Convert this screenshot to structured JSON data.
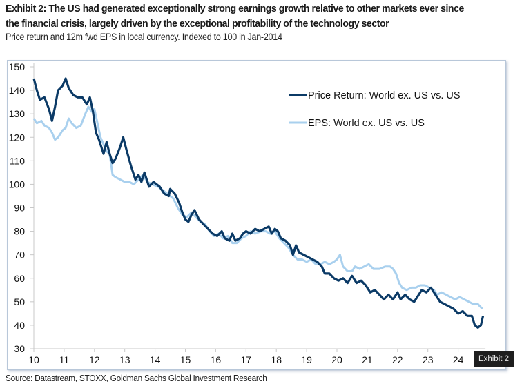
{
  "header": {
    "title_line1": "Exhibit 2: The US had generated exceptionally strong earnings growth relative to other markets ever since",
    "title_line2": "the financial crisis, largely driven by the exceptional profitability of the technology sector",
    "subtitle": "Price return and 12m fwd EPS in local currency. Indexed to 100 in Jan-2014"
  },
  "footer": {
    "source": "Source: Datastream, STOXX, Goldman Sachs Global Investment Research",
    "badge": "Exhibit 2"
  },
  "colors": {
    "price_return": "#0b3a66",
    "eps": "#a9d0ee",
    "axis": "#c8c8c8"
  },
  "chart_data": {
    "type": "line",
    "title": "Exhibit 2",
    "xlabel": "",
    "ylabel": "",
    "xlim": [
      10,
      24.9
    ],
    "ylim": [
      30,
      150
    ],
    "x_ticks": [
      10,
      11,
      12,
      13,
      14,
      15,
      16,
      17,
      18,
      19,
      20,
      21,
      22,
      23,
      24
    ],
    "x_tick_labels": [
      "10",
      "11",
      "12",
      "13",
      "14",
      "15",
      "16",
      "17",
      "18",
      "19",
      "20",
      "21",
      "22",
      "23",
      "24"
    ],
    "y_ticks": [
      30,
      40,
      50,
      60,
      70,
      80,
      90,
      100,
      110,
      120,
      130,
      140,
      150
    ],
    "y_tick_labels": [
      "30",
      "40",
      "50",
      "60",
      "70",
      "80",
      "90",
      "100",
      "110",
      "120",
      "130",
      "140",
      "150"
    ],
    "grid": false,
    "legend_position": "top-right",
    "series": [
      {
        "name": "Price Return: World ex. US vs. US",
        "points": [
          [
            10.0,
            145
          ],
          [
            10.1,
            140
          ],
          [
            10.2,
            136
          ],
          [
            10.35,
            137
          ],
          [
            10.5,
            132
          ],
          [
            10.6,
            127
          ],
          [
            10.7,
            133
          ],
          [
            10.8,
            140
          ],
          [
            10.95,
            142
          ],
          [
            11.05,
            145
          ],
          [
            11.15,
            141
          ],
          [
            11.3,
            138
          ],
          [
            11.45,
            137
          ],
          [
            11.6,
            137
          ],
          [
            11.75,
            134
          ],
          [
            11.85,
            137
          ],
          [
            11.95,
            131
          ],
          [
            12.05,
            122
          ],
          [
            12.15,
            119
          ],
          [
            12.3,
            113
          ],
          [
            12.4,
            118
          ],
          [
            12.5,
            113
          ],
          [
            12.6,
            109
          ],
          [
            12.7,
            111
          ],
          [
            12.85,
            116
          ],
          [
            12.95,
            120
          ],
          [
            13.05,
            115
          ],
          [
            13.2,
            108
          ],
          [
            13.35,
            102
          ],
          [
            13.45,
            104
          ],
          [
            13.55,
            101
          ],
          [
            13.65,
            105
          ],
          [
            13.8,
            99
          ],
          [
            13.95,
            101
          ],
          [
            14.15,
            99
          ],
          [
            14.3,
            96
          ],
          [
            14.45,
            95
          ],
          [
            14.5,
            98
          ],
          [
            14.65,
            96
          ],
          [
            14.8,
            92
          ],
          [
            14.9,
            88
          ],
          [
            15.0,
            85
          ],
          [
            15.1,
            84
          ],
          [
            15.2,
            87
          ],
          [
            15.3,
            89
          ],
          [
            15.45,
            85
          ],
          [
            15.6,
            83
          ],
          [
            15.75,
            81
          ],
          [
            15.9,
            79
          ],
          [
            16.05,
            78
          ],
          [
            16.2,
            80
          ],
          [
            16.3,
            77
          ],
          [
            16.45,
            76
          ],
          [
            16.55,
            79
          ],
          [
            16.65,
            76
          ],
          [
            16.8,
            77
          ],
          [
            16.9,
            79
          ],
          [
            17.0,
            80
          ],
          [
            17.15,
            79
          ],
          [
            17.3,
            81
          ],
          [
            17.45,
            80
          ],
          [
            17.6,
            81
          ],
          [
            17.75,
            82
          ],
          [
            17.85,
            79
          ],
          [
            17.95,
            81
          ],
          [
            18.05,
            80
          ],
          [
            18.15,
            77
          ],
          [
            18.3,
            76
          ],
          [
            18.45,
            74
          ],
          [
            18.55,
            70
          ],
          [
            18.65,
            74
          ],
          [
            18.75,
            71
          ],
          [
            18.9,
            70
          ],
          [
            19.05,
            69
          ],
          [
            19.2,
            68
          ],
          [
            19.35,
            67
          ],
          [
            19.5,
            65
          ],
          [
            19.6,
            62
          ],
          [
            19.75,
            62
          ],
          [
            19.9,
            60
          ],
          [
            20.05,
            59
          ],
          [
            20.2,
            60
          ],
          [
            20.35,
            58
          ],
          [
            20.5,
            61
          ],
          [
            20.65,
            58
          ],
          [
            20.8,
            59
          ],
          [
            20.95,
            57
          ],
          [
            21.1,
            54
          ],
          [
            21.25,
            55
          ],
          [
            21.4,
            53
          ],
          [
            21.55,
            51
          ],
          [
            21.7,
            53
          ],
          [
            21.85,
            51
          ],
          [
            22.0,
            54
          ],
          [
            22.1,
            51
          ],
          [
            22.25,
            53
          ],
          [
            22.4,
            51
          ],
          [
            22.55,
            50
          ],
          [
            22.65,
            52
          ],
          [
            22.8,
            55
          ],
          [
            22.95,
            54
          ],
          [
            23.1,
            56
          ],
          [
            23.25,
            53
          ],
          [
            23.4,
            50
          ],
          [
            23.55,
            49
          ],
          [
            23.7,
            48
          ],
          [
            23.85,
            47
          ],
          [
            24.0,
            45
          ],
          [
            24.15,
            46
          ],
          [
            24.3,
            44
          ],
          [
            24.45,
            44
          ],
          [
            24.55,
            40
          ],
          [
            24.65,
            39
          ],
          [
            24.75,
            40
          ],
          [
            24.82,
            44
          ]
        ]
      },
      {
        "name": "EPS: World ex. US vs. US",
        "points": [
          [
            10.0,
            128
          ],
          [
            10.1,
            126
          ],
          [
            10.25,
            127
          ],
          [
            10.35,
            125
          ],
          [
            10.5,
            124
          ],
          [
            10.6,
            122
          ],
          [
            10.7,
            119
          ],
          [
            10.8,
            120
          ],
          [
            10.95,
            123
          ],
          [
            11.05,
            124
          ],
          [
            11.15,
            128
          ],
          [
            11.25,
            126
          ],
          [
            11.4,
            124
          ],
          [
            11.55,
            125
          ],
          [
            11.7,
            130
          ],
          [
            11.8,
            133
          ],
          [
            11.9,
            131
          ],
          [
            12.0,
            132
          ],
          [
            12.1,
            126
          ],
          [
            12.2,
            120
          ],
          [
            12.3,
            117
          ],
          [
            12.4,
            114
          ],
          [
            12.5,
            113
          ],
          [
            12.6,
            104
          ],
          [
            12.7,
            103
          ],
          [
            12.85,
            102
          ],
          [
            13.0,
            101
          ],
          [
            13.15,
            101
          ],
          [
            13.3,
            100
          ],
          [
            13.45,
            102
          ],
          [
            13.6,
            104
          ],
          [
            13.75,
            101
          ],
          [
            13.9,
            100
          ],
          [
            14.1,
            99
          ],
          [
            14.3,
            97
          ],
          [
            14.5,
            95
          ],
          [
            14.6,
            94
          ],
          [
            14.75,
            90
          ],
          [
            14.9,
            87
          ],
          [
            15.05,
            86
          ],
          [
            15.2,
            88
          ],
          [
            15.35,
            86
          ],
          [
            15.5,
            84
          ],
          [
            15.65,
            83
          ],
          [
            15.8,
            80
          ],
          [
            15.95,
            78
          ],
          [
            16.1,
            79
          ],
          [
            16.25,
            77
          ],
          [
            16.4,
            78
          ],
          [
            16.55,
            75
          ],
          [
            16.7,
            75
          ],
          [
            16.85,
            77
          ],
          [
            17.0,
            78
          ],
          [
            17.15,
            80
          ],
          [
            17.3,
            79
          ],
          [
            17.5,
            80
          ],
          [
            17.65,
            80
          ],
          [
            17.8,
            79
          ],
          [
            17.95,
            80
          ],
          [
            18.1,
            77
          ],
          [
            18.25,
            75
          ],
          [
            18.4,
            73
          ],
          [
            18.55,
            70
          ],
          [
            18.7,
            68
          ],
          [
            18.85,
            68
          ],
          [
            19.0,
            67
          ],
          [
            19.15,
            68
          ],
          [
            19.3,
            66
          ],
          [
            19.45,
            66
          ],
          [
            19.6,
            67
          ],
          [
            19.75,
            66
          ],
          [
            19.9,
            67
          ],
          [
            20.0,
            68
          ],
          [
            20.1,
            70
          ],
          [
            20.2,
            65
          ],
          [
            20.35,
            63
          ],
          [
            20.5,
            63
          ],
          [
            20.6,
            65
          ],
          [
            20.75,
            64
          ],
          [
            20.9,
            65
          ],
          [
            21.05,
            66
          ],
          [
            21.2,
            64
          ],
          [
            21.4,
            64
          ],
          [
            21.6,
            65
          ],
          [
            21.75,
            65
          ],
          [
            21.85,
            64
          ],
          [
            21.95,
            62
          ],
          [
            22.05,
            58
          ],
          [
            22.15,
            56
          ],
          [
            22.3,
            55
          ],
          [
            22.45,
            56
          ],
          [
            22.6,
            56
          ],
          [
            22.75,
            57
          ],
          [
            22.9,
            57
          ],
          [
            23.05,
            56
          ],
          [
            23.2,
            55
          ],
          [
            23.3,
            53
          ],
          [
            23.45,
            54
          ],
          [
            23.6,
            53
          ],
          [
            23.75,
            52
          ],
          [
            23.9,
            51
          ],
          [
            24.05,
            52
          ],
          [
            24.2,
            51
          ],
          [
            24.35,
            50
          ],
          [
            24.5,
            49
          ],
          [
            24.65,
            49
          ],
          [
            24.8,
            47
          ]
        ]
      }
    ]
  }
}
